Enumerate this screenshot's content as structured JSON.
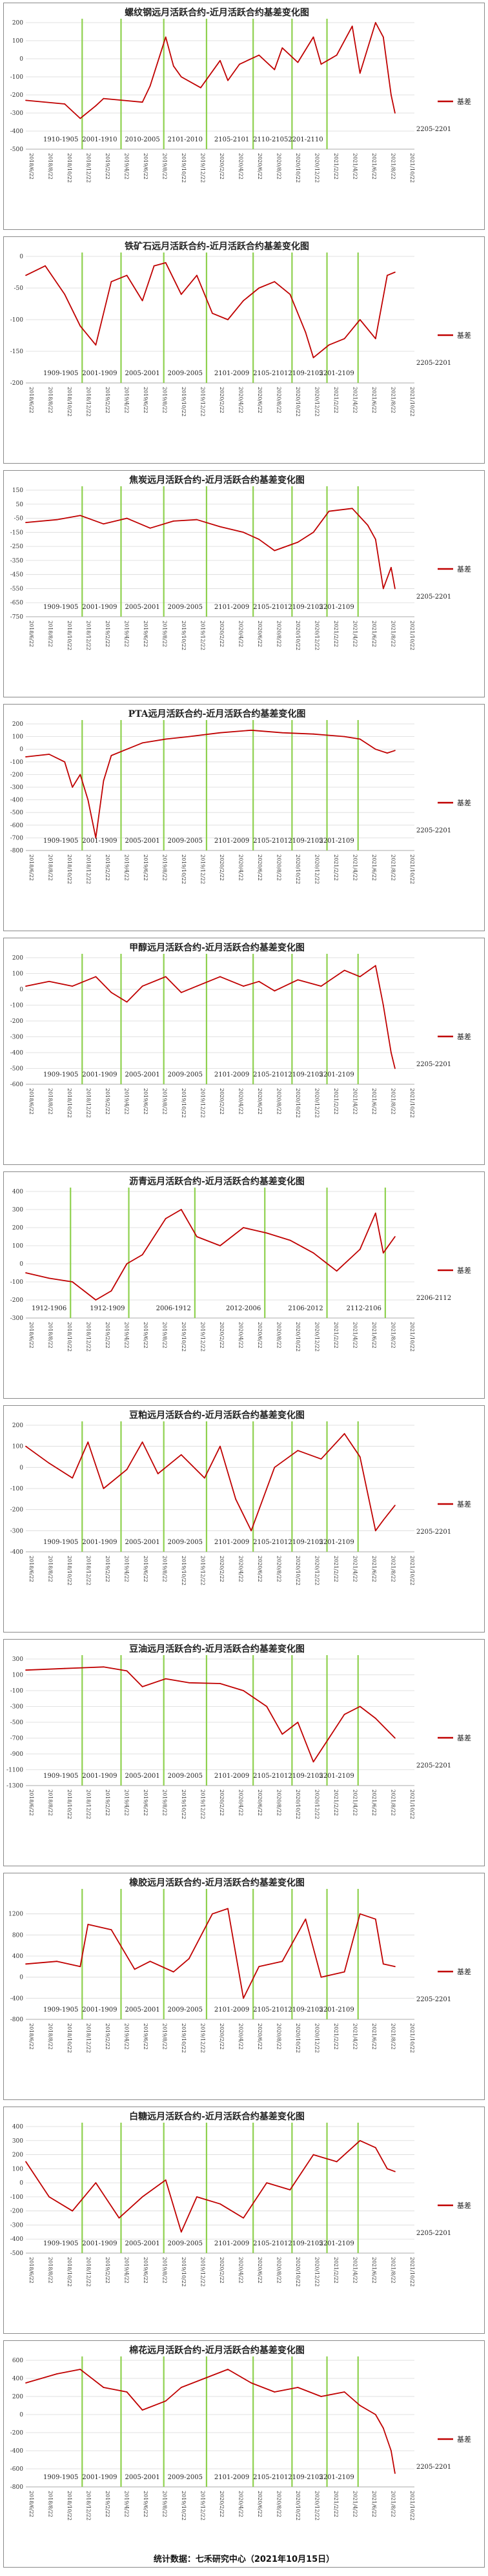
{
  "footer": "统计数据：七禾研究中心（2021年10月15日）",
  "legend_label": "基差",
  "x_ticks": [
    "2018/6/22",
    "2018/8/22",
    "2018/10/22",
    "2018/12/22",
    "2019/2/22",
    "2019/4/22",
    "2019/6/22",
    "2019/8/22",
    "2019/10/22",
    "2019/12/22",
    "2020/2/22",
    "2020/4/22",
    "2020/6/22",
    "2020/8/22",
    "2020/10/22",
    "2020/12/22",
    "2021/2/22",
    "2021/4/22",
    "2021/6/22",
    "2021/8/22",
    "2021/10/22"
  ],
  "colors": {
    "line": "#c00000",
    "marker": "#8fd14f",
    "grid": "#d9d9d9",
    "border": "#8a8a8a"
  },
  "chart_data": [
    {
      "type": "line",
      "title": "螺纹钢远月活跃合约-近月活跃合约基差变化图",
      "ylim": [
        -500,
        200
      ],
      "yticks": [
        200,
        100,
        0,
        -100,
        -200,
        -300,
        -400,
        -500
      ],
      "contract_labels": [
        "1910-1905",
        "2001-1910",
        "2010-2005",
        "2101-2010",
        "2105-2101",
        "2110-2105",
        "2201-2110",
        "2205-2201"
      ],
      "label_style": "tight",
      "series": [
        {
          "name": "基差",
          "x": [
            0,
            0.1,
            0.14,
            0.18,
            0.2,
            0.25,
            0.3,
            0.32,
            0.36,
            0.38,
            0.4,
            0.45,
            0.5,
            0.52,
            0.55,
            0.6,
            0.64,
            0.66,
            0.7,
            0.74,
            0.76,
            0.8,
            0.84,
            0.86,
            0.9,
            0.92,
            0.94,
            0.95
          ],
          "values": [
            -230,
            -250,
            -330,
            -260,
            -220,
            -230,
            -240,
            -150,
            120,
            -40,
            -100,
            -160,
            -10,
            -120,
            -30,
            20,
            -60,
            60,
            -20,
            120,
            -30,
            20,
            180,
            -80,
            200,
            120,
            -200,
            -300
          ]
        }
      ]
    },
    {
      "type": "line",
      "title": "铁矿石远月活跃合约-近月活跃合约基差变化图",
      "ylim": [
        -200,
        0
      ],
      "yticks": [
        0,
        -50,
        -100,
        -150,
        -200
      ],
      "contract_labels": [
        "1909-1905",
        "2001-1909",
        "2005-2001",
        "2009-2005",
        "2101-2009",
        "2105-2101",
        "2109-2105",
        "2201-2109",
        "2205-2201"
      ],
      "label_style": "tight",
      "series": [
        {
          "name": "基差",
          "x": [
            0,
            0.05,
            0.1,
            0.14,
            0.18,
            0.22,
            0.26,
            0.3,
            0.33,
            0.36,
            0.4,
            0.44,
            0.48,
            0.52,
            0.56,
            0.6,
            0.64,
            0.68,
            0.72,
            0.74,
            0.78,
            0.82,
            0.86,
            0.9,
            0.93,
            0.95
          ],
          "values": [
            -30,
            -15,
            -60,
            -110,
            -140,
            -40,
            -30,
            -70,
            -15,
            -10,
            -60,
            -30,
            -90,
            -100,
            -70,
            -50,
            -40,
            -60,
            -120,
            -160,
            -140,
            -130,
            -100,
            -130,
            -30,
            -25
          ]
        }
      ]
    },
    {
      "type": "line",
      "title": "焦炭远月活跃合约-近月活跃合约基差变化图",
      "ylim": [
        -750,
        150
      ],
      "yticks": [
        150,
        50,
        -50,
        -150,
        -250,
        -350,
        -450,
        -550,
        -650,
        -750
      ],
      "contract_labels": [
        "1909-1905",
        "2001-1909",
        "2005-2001",
        "2009-2005",
        "2101-2009",
        "2105-2101",
        "2109-2105",
        "2201-2109",
        "2205-2201"
      ],
      "label_style": "tight",
      "series": [
        {
          "name": "基差",
          "x": [
            0,
            0.08,
            0.14,
            0.2,
            0.26,
            0.32,
            0.38,
            0.44,
            0.5,
            0.56,
            0.6,
            0.64,
            0.7,
            0.74,
            0.78,
            0.84,
            0.88,
            0.9,
            0.92,
            0.94,
            0.95
          ],
          "values": [
            -80,
            -60,
            -30,
            -90,
            -50,
            -120,
            -70,
            -60,
            -110,
            -150,
            -200,
            -280,
            -220,
            -150,
            0,
            20,
            -100,
            -200,
            -550,
            -400,
            -550
          ]
        }
      ]
    },
    {
      "type": "line",
      "title": "PTA远月活跃合约-近月活跃合约基差变化图",
      "ylim": [
        -800,
        200
      ],
      "yticks": [
        200,
        100,
        0,
        -100,
        -200,
        -300,
        -400,
        -500,
        -600,
        -700,
        -800
      ],
      "contract_labels": [
        "1909-1905",
        "2001-1909",
        "2005-2001",
        "2009-2005",
        "2101-2009",
        "2105-2101",
        "2109-2105",
        "2201-2109",
        "2205-2201"
      ],
      "label_style": "tight",
      "series": [
        {
          "name": "基差",
          "x": [
            0,
            0.06,
            0.1,
            0.12,
            0.14,
            0.16,
            0.18,
            0.2,
            0.22,
            0.26,
            0.3,
            0.36,
            0.42,
            0.5,
            0.58,
            0.66,
            0.74,
            0.82,
            0.86,
            0.9,
            0.93,
            0.95
          ],
          "values": [
            -60,
            -40,
            -100,
            -300,
            -200,
            -400,
            -700,
            -250,
            -50,
            0,
            50,
            80,
            100,
            130,
            150,
            130,
            120,
            100,
            80,
            0,
            -30,
            -10
          ]
        }
      ]
    },
    {
      "type": "line",
      "title": "甲醇远月活跃合约-近月活跃合约基差变化图",
      "ylim": [
        -600,
        200
      ],
      "yticks": [
        200,
        100,
        0,
        -100,
        -200,
        -300,
        -400,
        -500,
        -600
      ],
      "contract_labels": [
        "1909-1905",
        "2001-1909",
        "2005-2001",
        "2009-2005",
        "2101-2009",
        "2105-2101",
        "2109-2105",
        "2201-2109",
        "2205-2201"
      ],
      "label_style": "tight",
      "series": [
        {
          "name": "基差",
          "x": [
            0,
            0.06,
            0.12,
            0.18,
            0.22,
            0.26,
            0.3,
            0.36,
            0.4,
            0.44,
            0.5,
            0.56,
            0.6,
            0.64,
            0.7,
            0.76,
            0.82,
            0.86,
            0.9,
            0.92,
            0.94,
            0.95
          ],
          "values": [
            20,
            50,
            20,
            80,
            -20,
            -80,
            20,
            80,
            -20,
            20,
            80,
            20,
            50,
            -10,
            60,
            20,
            120,
            80,
            150,
            -100,
            -400,
            -500
          ]
        }
      ]
    },
    {
      "type": "line",
      "title": "沥青远月活跃合约-近月活跃合约基差变化图",
      "ylim": [
        -300,
        400
      ],
      "yticks": [
        400,
        300,
        200,
        100,
        0,
        -100,
        -200,
        -300
      ],
      "contract_labels": [
        "1912-1906",
        "1912-1909",
        "2006-1912",
        "2012-2006",
        "2106-2012",
        "2112-2106",
        "2206-2112"
      ],
      "label_style": "wide",
      "series": [
        {
          "name": "基差",
          "x": [
            0,
            0.06,
            0.12,
            0.18,
            0.22,
            0.26,
            0.3,
            0.36,
            0.4,
            0.44,
            0.5,
            0.56,
            0.62,
            0.68,
            0.74,
            0.8,
            0.86,
            0.9,
            0.92,
            0.95
          ],
          "values": [
            -50,
            -80,
            -100,
            -200,
            -150,
            0,
            50,
            250,
            300,
            150,
            100,
            200,
            170,
            130,
            60,
            -40,
            80,
            280,
            60,
            150
          ]
        }
      ]
    },
    {
      "type": "line",
      "title": "豆粕远月活跃合约-近月活跃合约基差变化图",
      "ylim": [
        -400,
        200
      ],
      "yticks": [
        200,
        100,
        0,
        -100,
        -200,
        -300,
        -400
      ],
      "contract_labels": [
        "1909-1905",
        "2001-1909",
        "2005-2001",
        "2009-2005",
        "2101-2009",
        "2105-2101",
        "2109-2105",
        "2201-2109",
        "2205-2201"
      ],
      "label_style": "tight",
      "series": [
        {
          "name": "基差",
          "x": [
            0,
            0.06,
            0.12,
            0.16,
            0.2,
            0.26,
            0.3,
            0.34,
            0.4,
            0.46,
            0.5,
            0.54,
            0.58,
            0.64,
            0.7,
            0.76,
            0.82,
            0.86,
            0.9,
            0.92,
            0.95
          ],
          "values": [
            100,
            20,
            -50,
            120,
            -100,
            -10,
            120,
            -30,
            60,
            -50,
            100,
            -150,
            -300,
            0,
            80,
            40,
            160,
            50,
            -300,
            -250,
            -180
          ]
        }
      ]
    },
    {
      "type": "line",
      "title": "豆油远月活跃合约-近月活跃合约基差变化图",
      "ylim": [
        -1300,
        300
      ],
      "yticks": [
        300,
        100,
        -100,
        -300,
        -500,
        -700,
        -900,
        -1100,
        -1300
      ],
      "contract_labels": [
        "1909-1905",
        "2001-1909",
        "2005-2001",
        "2009-2005",
        "2101-2009",
        "2105-2101",
        "2109-2105",
        "2201-2109",
        "2205-2201"
      ],
      "label_style": "tight",
      "series": [
        {
          "name": "基差",
          "x": [
            0,
            0.1,
            0.2,
            0.26,
            0.3,
            0.36,
            0.42,
            0.5,
            0.56,
            0.62,
            0.66,
            0.7,
            0.74,
            0.78,
            0.82,
            0.86,
            0.9,
            0.93,
            0.95
          ],
          "values": [
            160,
            180,
            200,
            150,
            -50,
            50,
            0,
            -10,
            -100,
            -300,
            -650,
            -500,
            -1000,
            -700,
            -400,
            -300,
            -450,
            -600,
            -700
          ]
        }
      ]
    },
    {
      "type": "line",
      "title": "橡胶远月活跃合约-近月活跃合约基差变化图",
      "ylim": [
        -800,
        1600
      ],
      "yticks": [
        1200,
        800,
        400,
        0,
        -400,
        -800
      ],
      "contract_labels": [
        "1909-1905",
        "2001-1909",
        "2005-2001",
        "2009-2005",
        "2101-2009",
        "2105-2101",
        "2109-2105",
        "2201-2109",
        "2205-2201"
      ],
      "label_style": "tight",
      "series": [
        {
          "name": "基差",
          "x": [
            0,
            0.08,
            0.14,
            0.16,
            0.22,
            0.28,
            0.32,
            0.38,
            0.42,
            0.48,
            0.52,
            0.56,
            0.6,
            0.66,
            0.72,
            0.76,
            0.82,
            0.86,
            0.9,
            0.92,
            0.95
          ],
          "values": [
            250,
            300,
            200,
            1000,
            900,
            150,
            300,
            100,
            350,
            1200,
            1300,
            -400,
            200,
            300,
            1100,
            0,
            100,
            1200,
            1100,
            250,
            200
          ]
        }
      ]
    },
    {
      "type": "line",
      "title": "白糖远月活跃合约-近月活跃合约基差变化图",
      "ylim": [
        -500,
        400
      ],
      "yticks": [
        400,
        300,
        200,
        100,
        0,
        -100,
        -200,
        -300,
        -400,
        -500
      ],
      "contract_labels": [
        "1909-1905",
        "2001-1909",
        "2005-2001",
        "2009-2005",
        "2101-2009",
        "2105-2101",
        "2109-2105",
        "2201-2109",
        "2205-2201"
      ],
      "label_style": "tight",
      "series": [
        {
          "name": "基差",
          "x": [
            0,
            0.06,
            0.12,
            0.18,
            0.24,
            0.3,
            0.36,
            0.4,
            0.44,
            0.5,
            0.56,
            0.62,
            0.68,
            0.74,
            0.8,
            0.86,
            0.9,
            0.93,
            0.95
          ],
          "values": [
            150,
            -100,
            -200,
            0,
            -250,
            -100,
            20,
            -350,
            -100,
            -150,
            -250,
            0,
            -50,
            200,
            150,
            300,
            250,
            100,
            80
          ]
        }
      ]
    },
    {
      "type": "line",
      "title": "棉花远月活跃合约-近月活跃合约基差变化图",
      "ylim": [
        -800,
        600
      ],
      "yticks": [
        600,
        400,
        200,
        0,
        -200,
        -400,
        -600,
        -800
      ],
      "contract_labels": [
        "1909-1905",
        "2001-1909",
        "2005-2001",
        "2009-2005",
        "2101-2009",
        "2105-2101",
        "2109-2105",
        "2201-2109",
        "2205-2201"
      ],
      "label_style": "tight",
      "series": [
        {
          "name": "基差",
          "x": [
            0,
            0.08,
            0.14,
            0.2,
            0.26,
            0.3,
            0.36,
            0.4,
            0.46,
            0.52,
            0.58,
            0.64,
            0.7,
            0.76,
            0.82,
            0.86,
            0.9,
            0.92,
            0.94,
            0.95
          ],
          "values": [
            350,
            450,
            500,
            300,
            250,
            50,
            150,
            300,
            400,
            500,
            350,
            250,
            300,
            200,
            250,
            100,
            0,
            -150,
            -400,
            -650
          ]
        }
      ]
    }
  ]
}
